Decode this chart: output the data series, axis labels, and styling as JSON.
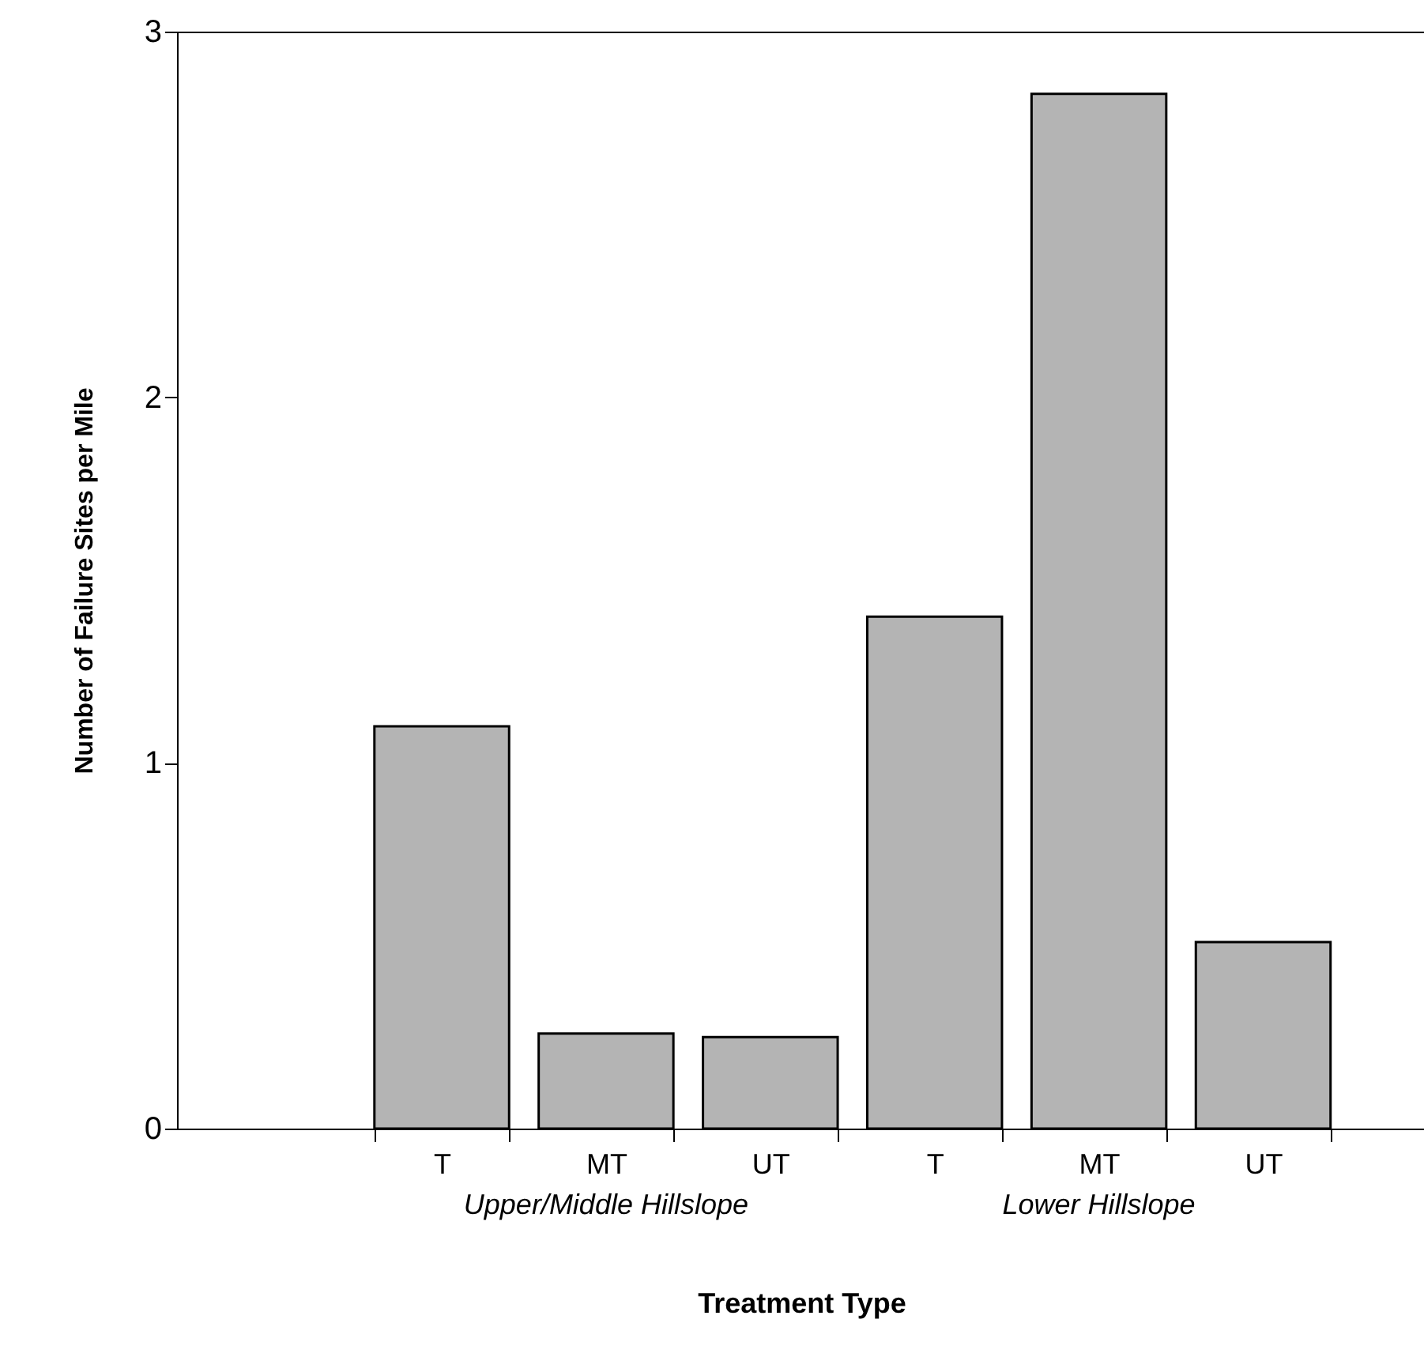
{
  "chart_data": {
    "type": "bar",
    "xlabel": "Treatment Type",
    "ylabel": "Number of Failure Sites per Mile",
    "categories": [
      "T",
      "MT",
      "UT",
      "T",
      "MT",
      "UT"
    ],
    "values": [
      1.1,
      0.26,
      0.25,
      1.4,
      2.83,
      0.51
    ],
    "color": "#b4b4b4",
    "ylim": [
      0,
      3
    ],
    "yticks": [
      0,
      1,
      2,
      3
    ],
    "annotations": [
      "Upper/Middle Hillslope",
      "Lower Hillslope"
    ],
    "grid": false
  }
}
